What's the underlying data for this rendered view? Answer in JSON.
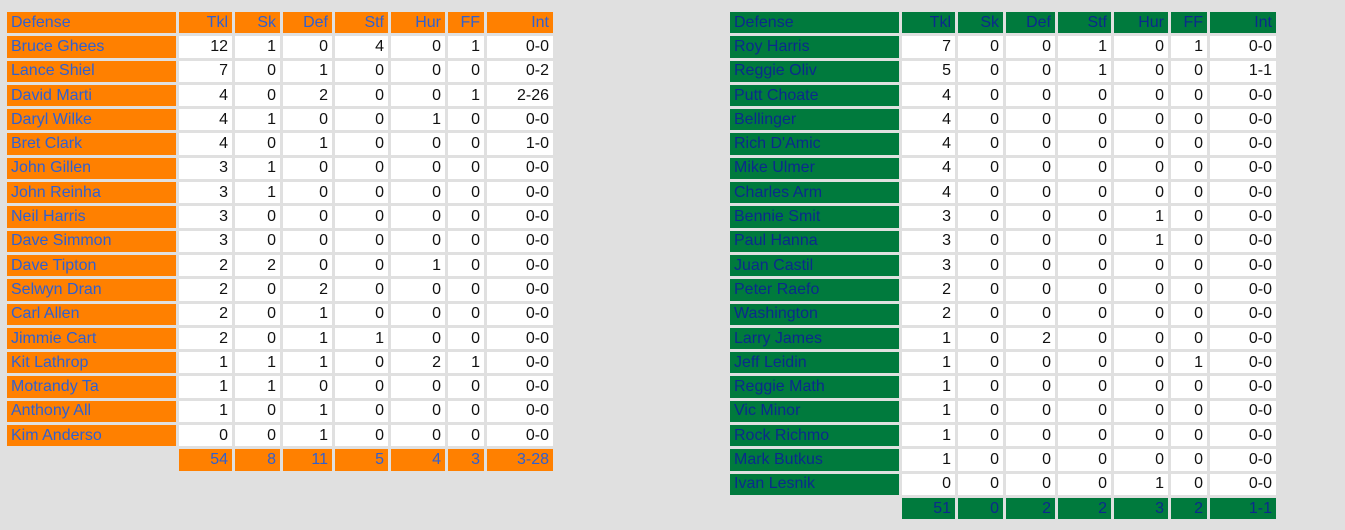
{
  "colors": {
    "left_accent": "#ff8000",
    "right_accent": "#007a3d",
    "background": "#e0e0e0"
  },
  "columns": [
    "Defense",
    "Tkl",
    "Sk",
    "Def",
    "Stf",
    "Hur",
    "FF",
    "Int"
  ],
  "left_team": {
    "rows": [
      [
        "Bruce Ghees",
        "12",
        "1",
        "0",
        "4",
        "0",
        "1",
        "0-0"
      ],
      [
        "Lance Shiel",
        "7",
        "0",
        "1",
        "0",
        "0",
        "0",
        "0-2"
      ],
      [
        "David Marti",
        "4",
        "0",
        "2",
        "0",
        "0",
        "1",
        "2-26"
      ],
      [
        "Daryl Wilke",
        "4",
        "1",
        "0",
        "0",
        "1",
        "0",
        "0-0"
      ],
      [
        "Bret Clark",
        "4",
        "0",
        "1",
        "0",
        "0",
        "0",
        "1-0"
      ],
      [
        "John Gillen",
        "3",
        "1",
        "0",
        "0",
        "0",
        "0",
        "0-0"
      ],
      [
        "John Reinha",
        "3",
        "1",
        "0",
        "0",
        "0",
        "0",
        "0-0"
      ],
      [
        "Neil Harris",
        "3",
        "0",
        "0",
        "0",
        "0",
        "0",
        "0-0"
      ],
      [
        "Dave Simmon",
        "3",
        "0",
        "0",
        "0",
        "0",
        "0",
        "0-0"
      ],
      [
        "Dave Tipton",
        "2",
        "2",
        "0",
        "0",
        "1",
        "0",
        "0-0"
      ],
      [
        "Selwyn Dran",
        "2",
        "0",
        "2",
        "0",
        "0",
        "0",
        "0-0"
      ],
      [
        "Carl Allen",
        "2",
        "0",
        "1",
        "0",
        "0",
        "0",
        "0-0"
      ],
      [
        "Jimmie Cart",
        "2",
        "0",
        "1",
        "1",
        "0",
        "0",
        "0-0"
      ],
      [
        "Kit Lathrop",
        "1",
        "1",
        "1",
        "0",
        "2",
        "1",
        "0-0"
      ],
      [
        "Motrandy Ta",
        "1",
        "1",
        "0",
        "0",
        "0",
        "0",
        "0-0"
      ],
      [
        "Anthony All",
        "1",
        "0",
        "1",
        "0",
        "0",
        "0",
        "0-0"
      ],
      [
        "Kim Anderso",
        "0",
        "0",
        "1",
        "0",
        "0",
        "0",
        "0-0"
      ]
    ],
    "totals": [
      "54",
      "8",
      "11",
      "5",
      "4",
      "3",
      "3-28"
    ]
  },
  "right_team": {
    "rows": [
      [
        "Roy Harris",
        "7",
        "0",
        "0",
        "1",
        "0",
        "1",
        "0-0"
      ],
      [
        "Reggie Oliv",
        "5",
        "0",
        "0",
        "1",
        "0",
        "0",
        "1-1"
      ],
      [
        "Putt Choate",
        "4",
        "0",
        "0",
        "0",
        "0",
        "0",
        "0-0"
      ],
      [
        "Bellinger",
        "4",
        "0",
        "0",
        "0",
        "0",
        "0",
        "0-0"
      ],
      [
        "Rich D'Amic",
        "4",
        "0",
        "0",
        "0",
        "0",
        "0",
        "0-0"
      ],
      [
        "Mike Ulmer",
        "4",
        "0",
        "0",
        "0",
        "0",
        "0",
        "0-0"
      ],
      [
        "Charles Arm",
        "4",
        "0",
        "0",
        "0",
        "0",
        "0",
        "0-0"
      ],
      [
        "Bennie Smit",
        "3",
        "0",
        "0",
        "0",
        "1",
        "0",
        "0-0"
      ],
      [
        "Paul Hanna",
        "3",
        "0",
        "0",
        "0",
        "1",
        "0",
        "0-0"
      ],
      [
        "Juan Castil",
        "3",
        "0",
        "0",
        "0",
        "0",
        "0",
        "0-0"
      ],
      [
        "Peter Raefo",
        "2",
        "0",
        "0",
        "0",
        "0",
        "0",
        "0-0"
      ],
      [
        "Washington",
        "2",
        "0",
        "0",
        "0",
        "0",
        "0",
        "0-0"
      ],
      [
        "Larry James",
        "1",
        "0",
        "2",
        "0",
        "0",
        "0",
        "0-0"
      ],
      [
        "Jeff Leidin",
        "1",
        "0",
        "0",
        "0",
        "0",
        "1",
        "0-0"
      ],
      [
        "Reggie Math",
        "1",
        "0",
        "0",
        "0",
        "0",
        "0",
        "0-0"
      ],
      [
        "Vic Minor",
        "1",
        "0",
        "0",
        "0",
        "0",
        "0",
        "0-0"
      ],
      [
        "Rock Richmo",
        "1",
        "0",
        "0",
        "0",
        "0",
        "0",
        "0-0"
      ],
      [
        "Mark Butkus",
        "1",
        "0",
        "0",
        "0",
        "0",
        "0",
        "0-0"
      ],
      [
        "Ivan Lesnik",
        "0",
        "0",
        "0",
        "0",
        "1",
        "0",
        "0-0"
      ]
    ],
    "totals": [
      "51",
      "0",
      "2",
      "2",
      "3",
      "2",
      "1-1"
    ]
  }
}
